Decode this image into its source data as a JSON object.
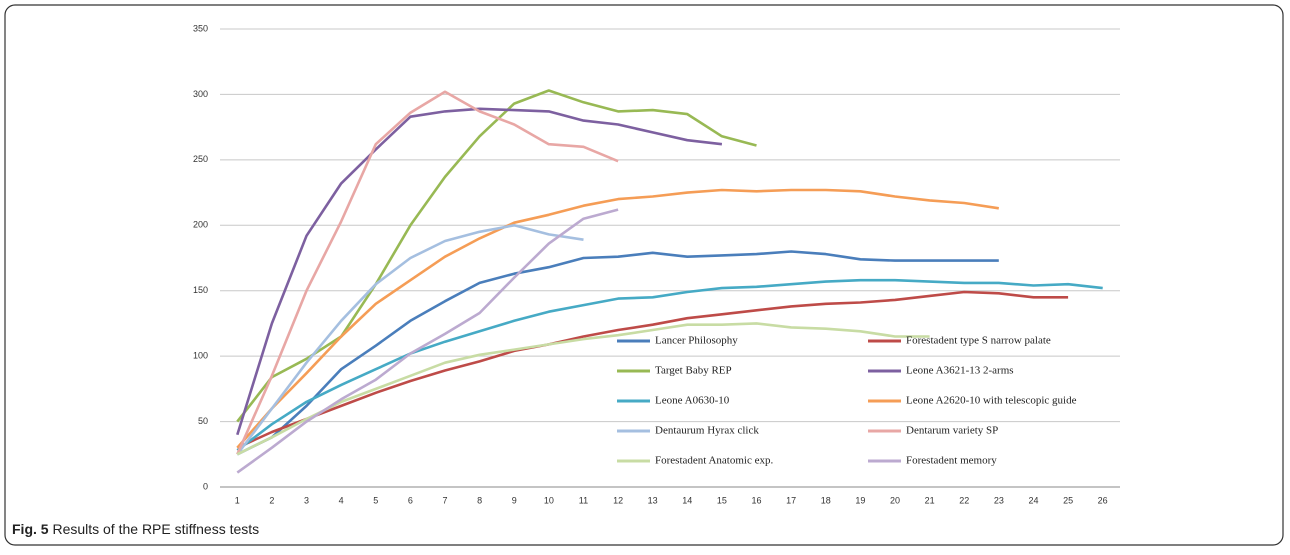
{
  "chart_data": {
    "type": "line",
    "categories": [
      "1",
      "2",
      "3",
      "4",
      "5",
      "6",
      "7",
      "8",
      "9",
      "10",
      "11",
      "12",
      "13",
      "14",
      "15",
      "16",
      "17",
      "18",
      "19",
      "20",
      "21",
      "22",
      "23",
      "24",
      "25",
      "26"
    ],
    "ylim": [
      0,
      350
    ],
    "yticks": [
      0,
      50,
      100,
      150,
      200,
      250,
      300,
      350
    ],
    "grid": true,
    "series": [
      {
        "name": "Lancer Philosophy",
        "color": "#4a7ebb",
        "values": [
          25,
          38,
          62,
          90,
          108,
          127,
          142,
          156,
          163,
          168,
          175,
          176,
          179,
          176,
          177,
          178,
          180,
          178,
          174,
          173,
          173,
          173,
          173,
          null,
          null,
          null
        ]
      },
      {
        "name": "Forestadent type S narrow palate",
        "color": "#be4b48",
        "values": [
          30,
          42,
          52,
          62,
          72,
          81,
          89,
          96,
          104,
          109,
          115,
          120,
          124,
          129,
          132,
          135,
          138,
          140,
          141,
          143,
          146,
          149,
          148,
          145,
          145,
          null
        ]
      },
      {
        "name": "Target Baby REP",
        "color": "#98b954",
        "values": [
          50,
          84,
          98,
          115,
          155,
          200,
          237,
          268,
          293,
          303,
          294,
          287,
          288,
          285,
          268,
          261,
          null,
          null,
          null,
          null,
          null,
          null,
          null,
          null,
          null,
          null
        ]
      },
      {
        "name": "Leone A3621-13 2-arms",
        "color": "#7d60a0",
        "values": [
          40,
          125,
          192,
          232,
          258,
          283,
          287,
          289,
          288,
          287,
          280,
          277,
          271,
          265,
          262,
          null,
          null,
          null,
          null,
          null,
          null,
          null,
          null,
          null,
          null,
          null
        ]
      },
      {
        "name": "Leone A0630-10",
        "color": "#46aac5",
        "values": [
          28,
          48,
          65,
          78,
          90,
          102,
          111,
          119,
          127,
          134,
          139,
          144,
          145,
          149,
          152,
          153,
          155,
          157,
          158,
          158,
          157,
          156,
          156,
          154,
          155,
          152
        ]
      },
      {
        "name": "Leone A2620-10 with telescopic guide",
        "color": "#f59d56",
        "values": [
          30,
          60,
          87,
          115,
          140,
          158,
          176,
          190,
          202,
          208,
          215,
          220,
          222,
          225,
          227,
          226,
          227,
          227,
          226,
          222,
          219,
          217,
          213,
          null,
          null,
          null
        ]
      },
      {
        "name": "Dentaurum Hyrax click",
        "color": "#a5bfe0",
        "values": [
          25,
          60,
          95,
          127,
          155,
          175,
          188,
          195,
          200,
          193,
          189,
          null,
          null,
          null,
          null,
          null,
          null,
          null,
          null,
          null,
          null,
          null,
          null,
          null,
          null,
          null
        ]
      },
      {
        "name": "Dentarum variety SP",
        "color": "#e8a7a5",
        "values": [
          25,
          85,
          150,
          203,
          262,
          286,
          302,
          287,
          277,
          262,
          260,
          249,
          null,
          null,
          null,
          null,
          null,
          null,
          null,
          null,
          null,
          null,
          null,
          null,
          null,
          null
        ]
      },
      {
        "name": "Forestadent Anatomic exp.",
        "color": "#c8dca4",
        "values": [
          25,
          38,
          52,
          65,
          75,
          85,
          95,
          101,
          105,
          109,
          113,
          116,
          120,
          124,
          124,
          125,
          122,
          121,
          119,
          115,
          115,
          null,
          null,
          null,
          null,
          null
        ]
      },
      {
        "name": "Forestadent memory",
        "color": "#bcaad0",
        "values": [
          11,
          30,
          50,
          67,
          82,
          102,
          117,
          133,
          160,
          186,
          205,
          212,
          null,
          null,
          null,
          null,
          null,
          null,
          null,
          null,
          null,
          null,
          null,
          null,
          null,
          null
        ]
      }
    ]
  },
  "caption": {
    "label": "Fig. 5",
    "text": "Results of the RPE stiffness tests"
  }
}
